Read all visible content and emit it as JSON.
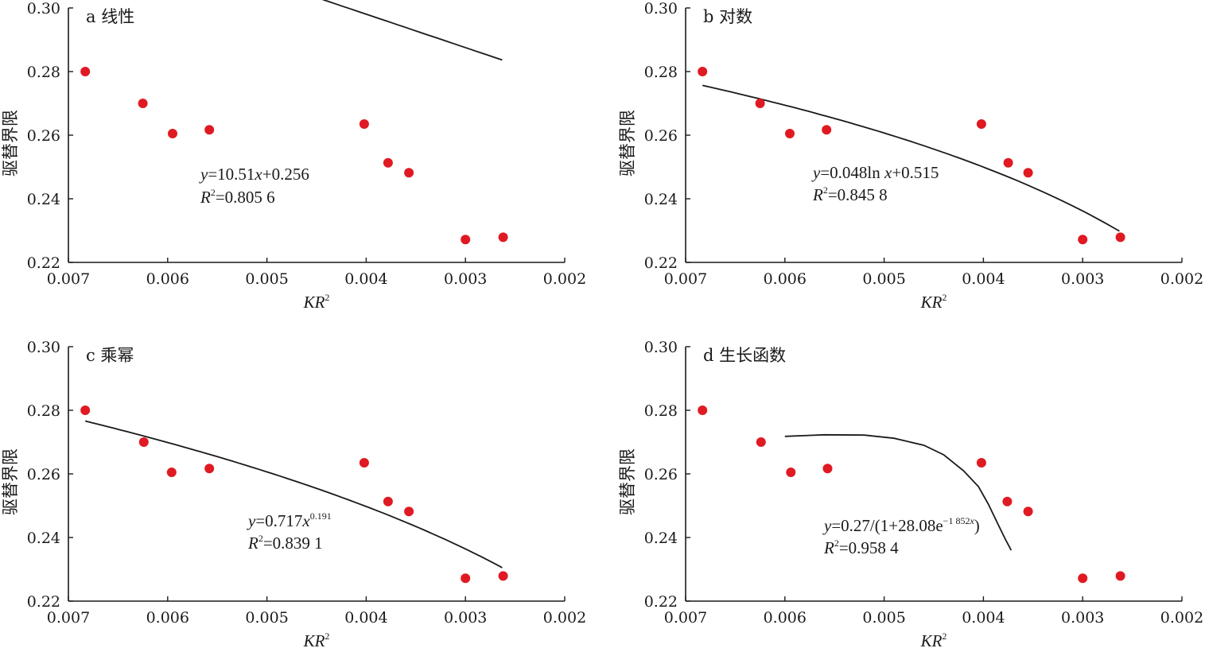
{
  "chart_data": [
    {
      "type": "scatter",
      "title": "a 线性",
      "xlabel_main": "KR",
      "xlabel_sup": "2",
      "ylabel": "驱替界限",
      "xlim": [
        0.007,
        0.002
      ],
      "ylim": [
        0.22,
        0.3
      ],
      "xticks": [
        "0.007",
        "0.006",
        "0.005",
        "0.004",
        "0.003",
        "0.002"
      ],
      "yticks": [
        "0.22",
        "0.24",
        "0.26",
        "0.28",
        "0.30"
      ],
      "x": [
        0.00683,
        0.00625,
        0.00595,
        0.00558,
        0.00402,
        0.00378,
        0.00357,
        0.003,
        0.00262
      ],
      "y": [
        0.28,
        0.27,
        0.2605,
        0.2617,
        0.2635,
        0.2513,
        0.2482,
        0.2272,
        0.2279
      ],
      "fit": {
        "kind": "linear",
        "a": 10.51,
        "b": 0.256,
        "x_start": 0.00683,
        "x_end": 0.00263
      },
      "equation": [
        {
          "text": "y",
          "italic": true
        },
        {
          "text": "=10.51"
        },
        {
          "text": "x",
          "italic": true
        },
        {
          "text": "+0.256"
        }
      ],
      "r2": [
        {
          "text": "R",
          "italic": true
        },
        {
          "text": "2",
          "sup": true
        },
        {
          "text": "=0.805 6"
        }
      ]
    },
    {
      "type": "scatter",
      "title": "b 对数",
      "xlabel_main": "KR",
      "xlabel_sup": "2",
      "ylabel": "驱替界限",
      "xlim": [
        0.007,
        0.002
      ],
      "ylim": [
        0.22,
        0.3
      ],
      "xticks": [
        "0.007",
        "0.006",
        "0.005",
        "0.004",
        "0.003",
        "0.002"
      ],
      "yticks": [
        "0.22",
        "0.24",
        "0.26",
        "0.28",
        "0.30"
      ],
      "x": [
        0.00683,
        0.00625,
        0.00595,
        0.00558,
        0.00402,
        0.00375,
        0.00355,
        0.003,
        0.00262
      ],
      "y": [
        0.28,
        0.27,
        0.2605,
        0.2617,
        0.2635,
        0.2513,
        0.2482,
        0.2272,
        0.2279
      ],
      "fit": {
        "kind": "log",
        "a": 0.048,
        "b": 0.515,
        "x_start": 0.00683,
        "x_end": 0.00263
      },
      "equation": [
        {
          "text": "y",
          "italic": true
        },
        {
          "text": "=0.048ln "
        },
        {
          "text": "x",
          "italic": true
        },
        {
          "text": "+0.515"
        }
      ],
      "r2": [
        {
          "text": "R",
          "italic": true
        },
        {
          "text": "2",
          "sup": true
        },
        {
          "text": "=0.845 8"
        }
      ]
    },
    {
      "type": "scatter",
      "title": "c 乘幂",
      "xlabel_main": "KR",
      "xlabel_sup": "2",
      "ylabel": "驱替界限",
      "xlim": [
        0.007,
        0.002
      ],
      "ylim": [
        0.22,
        0.3
      ],
      "xticks": [
        "0.007",
        "0.006",
        "0.005",
        "0.004",
        "0.003",
        "0.002"
      ],
      "yticks": [
        "0.22",
        "0.24",
        "0.26",
        "0.28",
        "0.30"
      ],
      "x": [
        0.00683,
        0.00624,
        0.00596,
        0.00558,
        0.00402,
        0.00378,
        0.00357,
        0.003,
        0.00262
      ],
      "y": [
        0.28,
        0.27,
        0.2605,
        0.2617,
        0.2635,
        0.2513,
        0.2482,
        0.2272,
        0.2279
      ],
      "fit": {
        "kind": "power",
        "a": 0.717,
        "b": 0.191,
        "x_start": 0.00683,
        "x_end": 0.00263
      },
      "equation": [
        {
          "text": "y",
          "italic": true
        },
        {
          "text": "=0.717"
        },
        {
          "text": "x",
          "italic": true
        },
        {
          "text": "0.191",
          "sup": true
        }
      ],
      "r2": [
        {
          "text": "R",
          "italic": true
        },
        {
          "text": "2",
          "sup": true
        },
        {
          "text": "=0.839 1"
        }
      ]
    },
    {
      "type": "scatter",
      "title": "d 生长函数",
      "xlabel_main": "KR",
      "xlabel_sup": "2",
      "ylabel": "驱替界限",
      "xlim": [
        0.007,
        0.002
      ],
      "ylim": [
        0.22,
        0.3
      ],
      "xticks": [
        "0.007",
        "0.006",
        "0.005",
        "0.004",
        "0.003",
        "0.002"
      ],
      "yticks": [
        "0.22",
        "0.24",
        "0.26",
        "0.28",
        "0.30"
      ],
      "x": [
        0.00683,
        0.00624,
        0.00594,
        0.00557,
        0.00402,
        0.00376,
        0.00355,
        0.003,
        0.00262
      ],
      "y": [
        0.28,
        0.27,
        0.2605,
        0.2617,
        0.2635,
        0.2513,
        0.2482,
        0.2272,
        0.2279
      ],
      "fit": {
        "kind": "growth",
        "x_start": 0.006,
        "x_end": 0.00372,
        "points": [
          [
            0.006,
            0.2718
          ],
          [
            0.0056,
            0.2723
          ],
          [
            0.0052,
            0.2722
          ],
          [
            0.0049,
            0.2712
          ],
          [
            0.0046,
            0.269
          ],
          [
            0.0044,
            0.266
          ],
          [
            0.0042,
            0.261
          ],
          [
            0.00405,
            0.256
          ],
          [
            0.00395,
            0.2505
          ],
          [
            0.00385,
            0.244
          ],
          [
            0.00378,
            0.2395
          ],
          [
            0.00372,
            0.236
          ]
        ]
      },
      "equation": [
        {
          "text": "y",
          "italic": true
        },
        {
          "text": "=0.27/(1+28.08e"
        },
        {
          "text": "−1 852",
          "sup": true
        },
        {
          "text": "x",
          "sup": true,
          "italic": true
        },
        {
          "text": ")"
        }
      ],
      "r2": [
        {
          "text": "R",
          "italic": true
        },
        {
          "text": "2",
          "sup": true
        },
        {
          "text": "=0.958 4"
        }
      ]
    }
  ]
}
